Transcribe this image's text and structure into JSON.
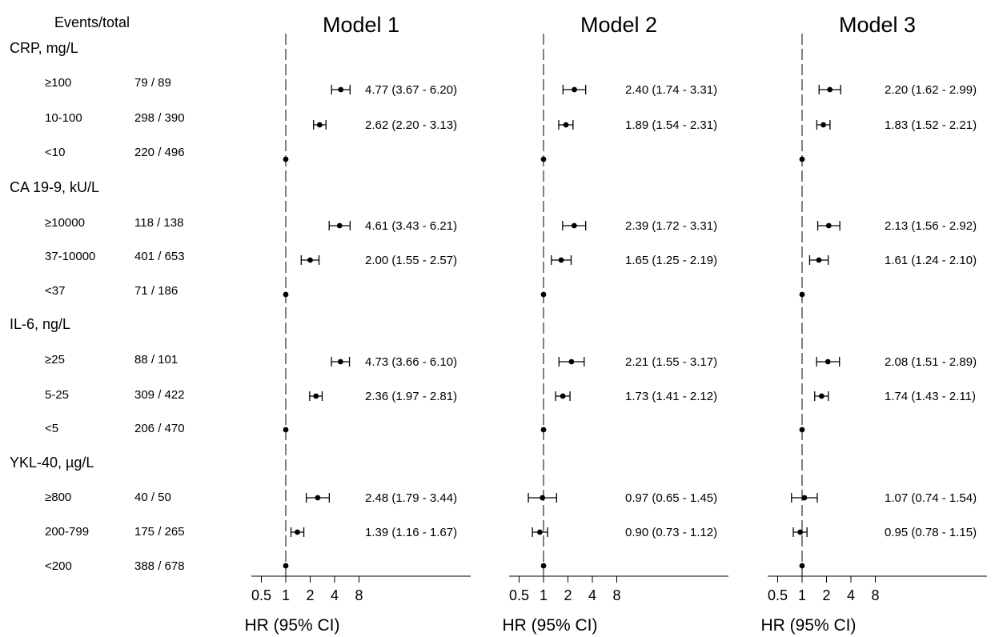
{
  "events_header": "Events/total",
  "groups": [
    {
      "name": "CRP, mg/L",
      "rows": [
        {
          "label": "≥100",
          "events": "79 / 89"
        },
        {
          "label": "10-100",
          "events": "298 / 390"
        },
        {
          "label": "<10",
          "events": "220 / 496"
        }
      ]
    },
    {
      "name": "CA 19-9, kU/L",
      "rows": [
        {
          "label": "≥10000",
          "events": "118 / 138"
        },
        {
          "label": "37-10000",
          "events": "401 / 653"
        },
        {
          "label": "<37",
          "events": "71 / 186"
        }
      ]
    },
    {
      "name": "IL-6, ng/L",
      "rows": [
        {
          "label": "≥25",
          "events": "88 / 101"
        },
        {
          "label": "5-25",
          "events": "309 / 422"
        },
        {
          "label": "<5",
          "events": "206 / 470"
        }
      ]
    },
    {
      "name": "YKL-40, µg/L",
      "rows": [
        {
          "label": "≥800",
          "events": "40 / 50"
        },
        {
          "label": "200-799",
          "events": "175 / 265"
        },
        {
          "label": "<200",
          "events": "388 / 678"
        }
      ]
    }
  ],
  "chart_data": {
    "type": "forest",
    "x_scale": "log2",
    "xlabel": "HR (95% CI)",
    "x_ticks": [
      "0.5",
      "1",
      "2",
      "4",
      "8"
    ],
    "reference_line": 1,
    "panels": [
      {
        "title": "Model 1",
        "rows": [
          {
            "hr": 4.77,
            "lo": 3.67,
            "hi": 6.2,
            "text": "4.77 (3.67 - 6.20)"
          },
          {
            "hr": 2.62,
            "lo": 2.2,
            "hi": 3.13,
            "text": "2.62 (2.20 - 3.13)"
          },
          {
            "hr": 1,
            "lo": null,
            "hi": null,
            "text": ""
          },
          {
            "hr": 4.61,
            "lo": 3.43,
            "hi": 6.21,
            "text": "4.61 (3.43 - 6.21)"
          },
          {
            "hr": 2.0,
            "lo": 1.55,
            "hi": 2.57,
            "text": "2.00 (1.55 - 2.57)"
          },
          {
            "hr": 1,
            "lo": null,
            "hi": null,
            "text": ""
          },
          {
            "hr": 4.73,
            "lo": 3.66,
            "hi": 6.1,
            "text": "4.73 (3.66 - 6.10)"
          },
          {
            "hr": 2.36,
            "lo": 1.97,
            "hi": 2.81,
            "text": "2.36 (1.97 - 2.81)"
          },
          {
            "hr": 1,
            "lo": null,
            "hi": null,
            "text": ""
          },
          {
            "hr": 2.48,
            "lo": 1.79,
            "hi": 3.44,
            "text": "2.48 (1.79 - 3.44)"
          },
          {
            "hr": 1.39,
            "lo": 1.16,
            "hi": 1.67,
            "text": "1.39 (1.16 - 1.67)"
          },
          {
            "hr": 1,
            "lo": null,
            "hi": null,
            "text": ""
          }
        ]
      },
      {
        "title": "Model 2",
        "rows": [
          {
            "hr": 2.4,
            "lo": 1.74,
            "hi": 3.31,
            "text": "2.40 (1.74 - 3.31)"
          },
          {
            "hr": 1.89,
            "lo": 1.54,
            "hi": 2.31,
            "text": "1.89 (1.54 - 2.31)"
          },
          {
            "hr": 1,
            "lo": null,
            "hi": null,
            "text": ""
          },
          {
            "hr": 2.39,
            "lo": 1.72,
            "hi": 3.31,
            "text": "2.39 (1.72 - 3.31)"
          },
          {
            "hr": 1.65,
            "lo": 1.25,
            "hi": 2.19,
            "text": "1.65 (1.25 - 2.19)"
          },
          {
            "hr": 1,
            "lo": null,
            "hi": null,
            "text": ""
          },
          {
            "hr": 2.21,
            "lo": 1.55,
            "hi": 3.17,
            "text": "2.21 (1.55 - 3.17)"
          },
          {
            "hr": 1.73,
            "lo": 1.41,
            "hi": 2.12,
            "text": "1.73 (1.41 - 2.12)"
          },
          {
            "hr": 1,
            "lo": null,
            "hi": null,
            "text": ""
          },
          {
            "hr": 0.97,
            "lo": 0.65,
            "hi": 1.45,
            "text": "0.97 (0.65 - 1.45)"
          },
          {
            "hr": 0.9,
            "lo": 0.73,
            "hi": 1.12,
            "text": "0.90 (0.73 - 1.12)"
          },
          {
            "hr": 1,
            "lo": null,
            "hi": null,
            "text": ""
          }
        ]
      },
      {
        "title": "Model 3",
        "rows": [
          {
            "hr": 2.2,
            "lo": 1.62,
            "hi": 2.99,
            "text": "2.20 (1.62 - 2.99)"
          },
          {
            "hr": 1.83,
            "lo": 1.52,
            "hi": 2.21,
            "text": "1.83 (1.52 - 2.21)"
          },
          {
            "hr": 1,
            "lo": null,
            "hi": null,
            "text": ""
          },
          {
            "hr": 2.13,
            "lo": 1.56,
            "hi": 2.92,
            "text": "2.13 (1.56 - 2.92)"
          },
          {
            "hr": 1.61,
            "lo": 1.24,
            "hi": 2.1,
            "text": "1.61 (1.24 - 2.10)"
          },
          {
            "hr": 1,
            "lo": null,
            "hi": null,
            "text": ""
          },
          {
            "hr": 2.08,
            "lo": 1.51,
            "hi": 2.89,
            "text": "2.08 (1.51 - 2.89)"
          },
          {
            "hr": 1.74,
            "lo": 1.43,
            "hi": 2.11,
            "text": "1.74 (1.43 - 2.11)"
          },
          {
            "hr": 1,
            "lo": null,
            "hi": null,
            "text": ""
          },
          {
            "hr": 1.07,
            "lo": 0.74,
            "hi": 1.54,
            "text": "1.07 (0.74 - 1.54)"
          },
          {
            "hr": 0.95,
            "lo": 0.78,
            "hi": 1.15,
            "text": "0.95 (0.78 - 1.15)"
          },
          {
            "hr": 1,
            "lo": null,
            "hi": null,
            "text": ""
          }
        ]
      }
    ]
  }
}
